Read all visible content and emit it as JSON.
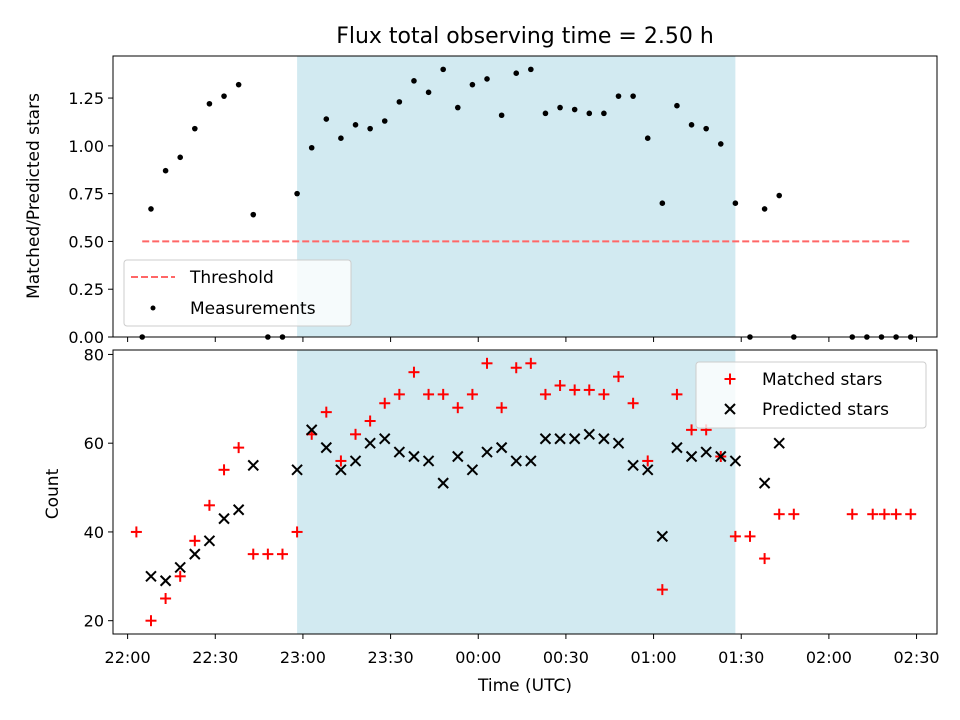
{
  "colors": {
    "shade": "#add8e6",
    "threshold": "#ff6666",
    "measurement": "#000000",
    "matched": "#ff0000",
    "predicted": "#000000",
    "axis": "#000000"
  },
  "chart_data": [
    {
      "type": "scatter",
      "title": "Flux total observing time = 2.50 h",
      "xlabel": "",
      "ylabel": "Matched/Predicted stars",
      "xlim": [
        "21:55",
        "02:37"
      ],
      "ylim": [
        0,
        1.47
      ],
      "yticks": [
        0.0,
        0.25,
        0.5,
        0.75,
        1.0,
        1.25
      ],
      "ytick_labels": [
        "0.00",
        "0.25",
        "0.50",
        "0.75",
        "1.00",
        "1.25"
      ],
      "shaded_region": [
        "22:58",
        "01:28"
      ],
      "legend_position": "lower-left",
      "threshold": {
        "name": "Threshold",
        "y": 0.5,
        "x": [
          "22:05",
          "02:28"
        ],
        "style": "dashed"
      },
      "series": [
        {
          "name": "Measurements",
          "points": [
            [
              "22:05",
              0
            ],
            [
              "22:08",
              0.67
            ],
            [
              "22:13",
              0.87
            ],
            [
              "22:18",
              0.94
            ],
            [
              "22:23",
              1.09
            ],
            [
              "22:28",
              1.22
            ],
            [
              "22:33",
              1.26
            ],
            [
              "22:38",
              1.32
            ],
            [
              "22:43",
              0.64
            ],
            [
              "22:48",
              0
            ],
            [
              "22:53",
              0
            ],
            [
              "22:58",
              0.75
            ],
            [
              "23:03",
              0.99
            ],
            [
              "23:08",
              1.14
            ],
            [
              "23:13",
              1.04
            ],
            [
              "23:18",
              1.11
            ],
            [
              "23:23",
              1.09
            ],
            [
              "23:28",
              1.13
            ],
            [
              "23:33",
              1.23
            ],
            [
              "23:38",
              1.34
            ],
            [
              "23:43",
              1.28
            ],
            [
              "23:48",
              1.4
            ],
            [
              "23:53",
              1.2
            ],
            [
              "23:58",
              1.32
            ],
            [
              "00:03",
              1.35
            ],
            [
              "00:08",
              1.16
            ],
            [
              "00:13",
              1.38
            ],
            [
              "00:18",
              1.4
            ],
            [
              "00:23",
              1.17
            ],
            [
              "00:28",
              1.2
            ],
            [
              "00:33",
              1.19
            ],
            [
              "00:38",
              1.17
            ],
            [
              "00:43",
              1.17
            ],
            [
              "00:48",
              1.26
            ],
            [
              "00:53",
              1.26
            ],
            [
              "00:58",
              1.04
            ],
            [
              "01:03",
              0.7
            ],
            [
              "01:08",
              1.21
            ],
            [
              "01:13",
              1.11
            ],
            [
              "01:18",
              1.09
            ],
            [
              "01:23",
              1.01
            ],
            [
              "01:28",
              0.7
            ],
            [
              "01:33",
              0
            ],
            [
              "01:38",
              0.67
            ],
            [
              "01:43",
              0.74
            ],
            [
              "01:48",
              0
            ],
            [
              "02:08",
              0
            ],
            [
              "02:13",
              0
            ],
            [
              "02:18",
              0
            ],
            [
              "02:23",
              0
            ],
            [
              "02:28",
              0
            ]
          ]
        }
      ]
    },
    {
      "type": "scatter",
      "title": "",
      "xlabel": "Time (UTC)",
      "ylabel": "Count",
      "xlim": [
        "21:55",
        "02:37"
      ],
      "ylim": [
        17,
        81
      ],
      "yticks": [
        20,
        40,
        60,
        80
      ],
      "xticks": [
        "22:00",
        "22:30",
        "23:00",
        "23:30",
        "00:00",
        "00:30",
        "01:00",
        "01:30",
        "02:00",
        "02:30"
      ],
      "shaded_region": [
        "22:58",
        "01:28"
      ],
      "legend_position": "upper-right",
      "series": [
        {
          "name": "Matched stars",
          "marker": "plus",
          "points": [
            [
              "22:03",
              40
            ],
            [
              "22:08",
              20
            ],
            [
              "22:13",
              25
            ],
            [
              "22:18",
              30
            ],
            [
              "22:23",
              38
            ],
            [
              "22:28",
              46
            ],
            [
              "22:33",
              54
            ],
            [
              "22:38",
              59
            ],
            [
              "22:43",
              35
            ],
            [
              "22:48",
              35
            ],
            [
              "22:53",
              35
            ],
            [
              "22:58",
              40
            ],
            [
              "23:03",
              62
            ],
            [
              "23:08",
              67
            ],
            [
              "23:13",
              56
            ],
            [
              "23:18",
              62
            ],
            [
              "23:23",
              65
            ],
            [
              "23:28",
              69
            ],
            [
              "23:33",
              71
            ],
            [
              "23:38",
              76
            ],
            [
              "23:43",
              71
            ],
            [
              "23:48",
              71
            ],
            [
              "23:53",
              68
            ],
            [
              "23:58",
              71
            ],
            [
              "00:03",
              78
            ],
            [
              "00:08",
              68
            ],
            [
              "00:13",
              77
            ],
            [
              "00:18",
              78
            ],
            [
              "00:23",
              71
            ],
            [
              "00:28",
              73
            ],
            [
              "00:33",
              72
            ],
            [
              "00:38",
              72
            ],
            [
              "00:43",
              71
            ],
            [
              "00:48",
              75
            ],
            [
              "00:53",
              69
            ],
            [
              "00:58",
              56
            ],
            [
              "01:03",
              27
            ],
            [
              "01:08",
              71
            ],
            [
              "01:13",
              63
            ],
            [
              "01:18",
              63
            ],
            [
              "01:23",
              57
            ],
            [
              "01:28",
              39
            ],
            [
              "01:33",
              39
            ],
            [
              "01:38",
              34
            ],
            [
              "01:43",
              44
            ],
            [
              "01:48",
              44
            ],
            [
              "02:08",
              44
            ],
            [
              "02:15",
              44
            ],
            [
              "02:19",
              44
            ],
            [
              "02:23",
              44
            ],
            [
              "02:28",
              44
            ]
          ]
        },
        {
          "name": "Predicted stars",
          "marker": "x",
          "points": [
            [
              "22:08",
              30
            ],
            [
              "22:13",
              29
            ],
            [
              "22:18",
              32
            ],
            [
              "22:23",
              35
            ],
            [
              "22:28",
              38
            ],
            [
              "22:33",
              43
            ],
            [
              "22:38",
              45
            ],
            [
              "22:43",
              55
            ],
            [
              "22:58",
              54
            ],
            [
              "23:03",
              63
            ],
            [
              "23:08",
              59
            ],
            [
              "23:13",
              54
            ],
            [
              "23:18",
              56
            ],
            [
              "23:23",
              60
            ],
            [
              "23:28",
              61
            ],
            [
              "23:33",
              58
            ],
            [
              "23:38",
              57
            ],
            [
              "23:43",
              56
            ],
            [
              "23:48",
              51
            ],
            [
              "23:53",
              57
            ],
            [
              "23:58",
              54
            ],
            [
              "00:03",
              58
            ],
            [
              "00:08",
              59
            ],
            [
              "00:13",
              56
            ],
            [
              "00:18",
              56
            ],
            [
              "00:23",
              61
            ],
            [
              "00:28",
              61
            ],
            [
              "00:33",
              61
            ],
            [
              "00:38",
              62
            ],
            [
              "00:43",
              61
            ],
            [
              "00:48",
              60
            ],
            [
              "00:53",
              55
            ],
            [
              "00:58",
              54
            ],
            [
              "01:03",
              39
            ],
            [
              "01:08",
              59
            ],
            [
              "01:13",
              57
            ],
            [
              "01:18",
              58
            ],
            [
              "01:23",
              57
            ],
            [
              "01:28",
              56
            ],
            [
              "01:38",
              51
            ],
            [
              "01:43",
              60
            ]
          ]
        }
      ]
    }
  ]
}
